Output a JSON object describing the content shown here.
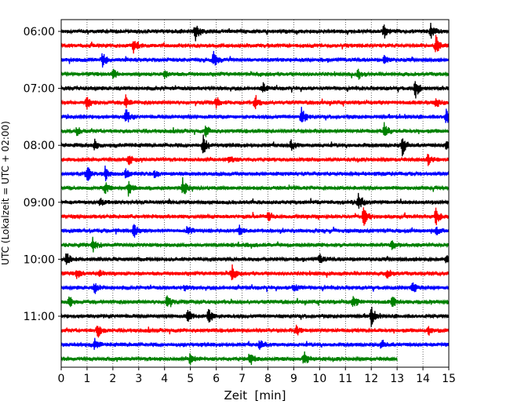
{
  "chart_data": {
    "type": "line",
    "chart_kind": "helicorder seismogram",
    "xlabel": "Zeit  [min]",
    "ylabel": "UTC (Lokalzeit = UTC + 02:00)",
    "xlim": [
      0,
      15
    ],
    "x_ticks": [
      "0",
      "1",
      "2",
      "3",
      "4",
      "5",
      "6",
      "7",
      "8",
      "9",
      "10",
      "11",
      "12",
      "13",
      "14",
      "15"
    ],
    "y_tick_labels": [
      "06:00",
      "07:00",
      "08:00",
      "09:00",
      "10:00",
      "11:00"
    ],
    "grid": "vertical dotted lines at each minute",
    "minutes_per_line": 15,
    "line_colors": [
      "#000000",
      "#ff0000",
      "#0000ff",
      "#008000"
    ],
    "traces": [
      {
        "start": "06:00",
        "color": "#000000",
        "events": [
          [
            5.2,
            1.0
          ],
          [
            12.5,
            0.8
          ],
          [
            14.3,
            0.7
          ]
        ]
      },
      {
        "start": "06:15",
        "color": "#ff0000",
        "events": [
          [
            2.8,
            0.8
          ],
          [
            14.5,
            1.0
          ]
        ]
      },
      {
        "start": "06:30",
        "color": "#0000ff",
        "events": [
          [
            1.6,
            0.7
          ],
          [
            5.9,
            0.8
          ],
          [
            12.5,
            0.4
          ]
        ]
      },
      {
        "start": "06:45",
        "color": "#008000",
        "events": [
          [
            2.0,
            0.5
          ],
          [
            4.0,
            0.4
          ],
          [
            11.5,
            0.5
          ]
        ]
      },
      {
        "start": "07:00",
        "color": "#000000",
        "events": [
          [
            7.8,
            0.5
          ],
          [
            13.7,
            1.0
          ]
        ]
      },
      {
        "start": "07:15",
        "color": "#ff0000",
        "events": [
          [
            1.0,
            0.6
          ],
          [
            2.5,
            0.6
          ],
          [
            6.0,
            0.6
          ],
          [
            7.5,
            0.7
          ],
          [
            14.5,
            0.5
          ]
        ]
      },
      {
        "start": "07:30",
        "color": "#0000ff",
        "events": [
          [
            2.5,
            0.8
          ],
          [
            9.3,
            0.9
          ],
          [
            14.9,
            0.8
          ]
        ]
      },
      {
        "start": "07:45",
        "color": "#008000",
        "events": [
          [
            0.6,
            0.4
          ],
          [
            5.6,
            0.5
          ],
          [
            12.5,
            0.9
          ]
        ]
      },
      {
        "start": "08:00",
        "color": "#000000",
        "events": [
          [
            1.3,
            0.5
          ],
          [
            5.5,
            1.0
          ],
          [
            8.9,
            0.5
          ],
          [
            13.2,
            1.0
          ],
          [
            14.9,
            0.5
          ]
        ]
      },
      {
        "start": "08:15",
        "color": "#ff0000",
        "events": [
          [
            2.6,
            0.6
          ],
          [
            6.5,
            0.4
          ],
          [
            14.2,
            0.6
          ]
        ]
      },
      {
        "start": "08:30",
        "color": "#0000ff",
        "events": [
          [
            1.0,
            0.8
          ],
          [
            1.7,
            0.7
          ],
          [
            2.5,
            0.6
          ],
          [
            3.6,
            0.4
          ]
        ]
      },
      {
        "start": "08:45",
        "color": "#008000",
        "events": [
          [
            1.7,
            0.6
          ],
          [
            2.6,
            0.7
          ],
          [
            4.7,
            0.9
          ]
        ]
      },
      {
        "start": "09:00",
        "color": "#000000",
        "events": [
          [
            11.5,
            1.0
          ],
          [
            1.5,
            0.3
          ]
        ]
      },
      {
        "start": "09:15",
        "color": "#ff0000",
        "events": [
          [
            8.0,
            0.5
          ],
          [
            11.7,
            0.9
          ],
          [
            14.5,
            0.8
          ]
        ]
      },
      {
        "start": "09:30",
        "color": "#0000ff",
        "events": [
          [
            2.8,
            0.8
          ],
          [
            4.9,
            0.5
          ],
          [
            6.9,
            0.5
          ],
          [
            14.5,
            0.5
          ]
        ]
      },
      {
        "start": "09:45",
        "color": "#008000",
        "events": [
          [
            1.2,
            0.8
          ],
          [
            12.8,
            0.4
          ]
        ]
      },
      {
        "start": "10:00",
        "color": "#000000",
        "events": [
          [
            0.2,
            0.7
          ],
          [
            10.0,
            0.4
          ],
          [
            14.9,
            0.5
          ]
        ]
      },
      {
        "start": "10:15",
        "color": "#ff0000",
        "events": [
          [
            0.6,
            0.5
          ],
          [
            1.5,
            0.4
          ],
          [
            6.6,
            0.8
          ],
          [
            12.6,
            0.5
          ]
        ]
      },
      {
        "start": "10:30",
        "color": "#0000ff",
        "events": [
          [
            1.3,
            0.5
          ],
          [
            4.8,
            0.4
          ],
          [
            9.0,
            0.4
          ],
          [
            13.6,
            0.7
          ]
        ]
      },
      {
        "start": "10:45",
        "color": "#008000",
        "events": [
          [
            0.3,
            0.6
          ],
          [
            4.1,
            0.7
          ],
          [
            11.3,
            0.6
          ],
          [
            12.8,
            0.6
          ]
        ]
      },
      {
        "start": "11:00",
        "color": "#000000",
        "events": [
          [
            4.9,
            0.6
          ],
          [
            5.7,
            0.9
          ],
          [
            12.0,
            0.9
          ]
        ]
      },
      {
        "start": "11:15",
        "color": "#ff0000",
        "events": [
          [
            1.4,
            0.7
          ],
          [
            9.1,
            0.6
          ],
          [
            14.2,
            0.4
          ]
        ]
      },
      {
        "start": "11:30",
        "color": "#0000ff",
        "events": [
          [
            1.3,
            0.5
          ],
          [
            7.7,
            0.6
          ],
          [
            12.4,
            0.5
          ]
        ]
      },
      {
        "start": "11:45",
        "color": "#008000",
        "events": [
          [
            5.0,
            0.6
          ],
          [
            7.3,
            0.7
          ],
          [
            9.4,
            0.8
          ]
        ],
        "end_min": 13.0
      }
    ]
  }
}
